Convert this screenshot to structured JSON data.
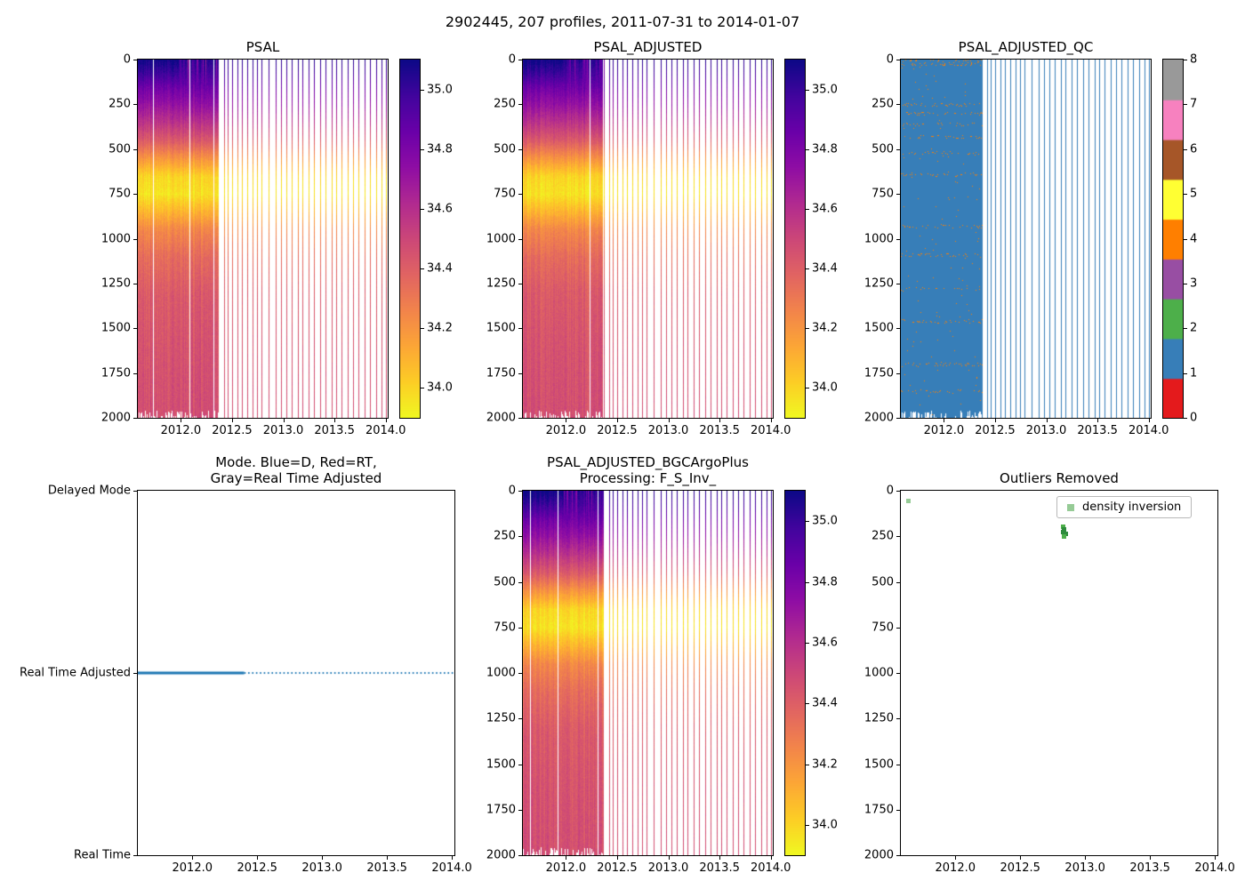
{
  "suptitle": "2902445, 207 profiles, 2011-07-31 to 2014-01-07",
  "chart_data": {
    "shared": {
      "x_range": [
        2011.58,
        2014.02
      ],
      "x_ticks": [
        2012.0,
        2012.5,
        2013.0,
        2013.5,
        2014.0
      ],
      "depth_range": [
        0,
        2000
      ],
      "depth_ticks": [
        0,
        250,
        500,
        750,
        1000,
        1250,
        1500,
        1750,
        2000
      ],
      "y_inverted": true,
      "grid": false,
      "dense_start": 2011.58,
      "dense_end": 2012.37,
      "sparse_times": [
        2012.42,
        2012.46,
        2012.5,
        2012.55,
        2012.6,
        2012.65,
        2012.7,
        2012.74,
        2012.79,
        2012.86,
        2012.93,
        2012.98,
        2013.03,
        2013.08,
        2013.14,
        2013.19,
        2013.25,
        2013.3,
        2013.36,
        2013.41,
        2013.47,
        2013.52,
        2013.57,
        2013.63,
        2013.68,
        2013.73,
        2013.79,
        2013.85,
        2013.91,
        2013.96,
        2014.0
      ],
      "colormap": "plasma_r",
      "salinity_clim": [
        33.9,
        35.1
      ],
      "salinity_colorbar_ticks": [
        34.0,
        34.2,
        34.4,
        34.6,
        34.8,
        35.0
      ],
      "profile_depths": [
        0,
        80,
        150,
        250,
        350,
        450,
        550,
        650,
        750,
        850,
        950,
        1100,
        1300,
        1600,
        2000
      ],
      "profile_values": [
        35.03,
        34.95,
        34.85,
        34.72,
        34.58,
        34.42,
        34.2,
        34.0,
        33.96,
        34.1,
        34.25,
        34.35,
        34.42,
        34.45,
        34.47
      ]
    },
    "panels": [
      {
        "id": "psal",
        "type": "heatmap",
        "title": "PSAL",
        "seed": 42
      },
      {
        "id": "psal-adjusted",
        "type": "heatmap",
        "title": "PSAL_ADJUSTED",
        "seed": 43
      },
      {
        "id": "qc",
        "type": "qc_heatmap",
        "title": "PSAL_ADJUSTED_QC",
        "qc_values": [
          0,
          1,
          2,
          3,
          4,
          5,
          6,
          7,
          8
        ],
        "qc_colors": [
          "#e41a1c",
          "#377eb8",
          "#4daf4a",
          "#984ea3",
          "#ff7f00",
          "#ffff33",
          "#a65628",
          "#f781bf",
          "#999999"
        ],
        "base_qc": 1,
        "flag_qc": 4,
        "surface_flag_depth": 30,
        "flag_row_depths": [
          250,
          300,
          360,
          430,
          520,
          640,
          930,
          1090,
          1280,
          1460,
          1700,
          1850
        ]
      },
      {
        "id": "mode",
        "type": "line",
        "title": "Mode. Blue=D, Red=RT,\nGray=Real Time Adjusted",
        "categories": [
          "Delayed Mode",
          "Real Time Adjusted",
          "Real Time"
        ],
        "line_category": "Real Time Adjusted",
        "line_color": "#1f77b4",
        "solid_span": [
          2011.58,
          2012.4
        ],
        "dotted_span": [
          2012.4,
          2014.02
        ]
      },
      {
        "id": "bgc",
        "type": "heatmap",
        "title": "PSAL_ADJUSTED_BGCArgoPlus\nProcessing: F_S_Inv_",
        "seed": 44
      },
      {
        "id": "outliers",
        "type": "scatter",
        "title": "Outliers Removed",
        "legend": {
          "label": "density inversion",
          "marker_color": "#96cb96"
        },
        "points": [
          {
            "x": 2011.64,
            "depth": 55,
            "color": "#96cb96"
          },
          {
            "x": 2012.83,
            "depth": 196,
            "color": "#4daf4a"
          },
          {
            "x": 2012.84,
            "depth": 212,
            "color": "#2e8b3d"
          },
          {
            "x": 2012.83,
            "depth": 226,
            "color": "#2e8b3d"
          },
          {
            "x": 2012.85,
            "depth": 238,
            "color": "#2e8b3d"
          },
          {
            "x": 2012.84,
            "depth": 250,
            "color": "#4daf4a"
          }
        ]
      }
    ]
  }
}
